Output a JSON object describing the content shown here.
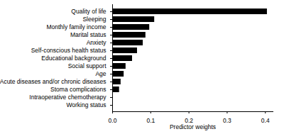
{
  "chart_data": {
    "type": "bar",
    "orientation": "horizontal",
    "categories": [
      "Quality of life",
      "Sleeping",
      "Monthly family income",
      "Marital status",
      "Anxiety",
      "Self-conscious health status",
      "Educational background",
      "Social support",
      "Age",
      "Acute diseases and/or chronic diseases",
      "Stoma complications",
      "Intraoperative chemotherapy",
      "Working status"
    ],
    "values": [
      0.405,
      0.11,
      0.097,
      0.087,
      0.08,
      0.065,
      0.052,
      0.035,
      0.03,
      0.022,
      0.018,
      0.001,
      0.0005
    ],
    "color": "#000000",
    "xlabel": "Predictor weights",
    "xlim": [
      0,
      0.42
    ],
    "xticks": [
      {
        "value": 0,
        "label": "0.0"
      },
      {
        "value": 0.1,
        "label": "0.1"
      },
      {
        "value": 0.2,
        "label": "0.2"
      },
      {
        "value": 0.3,
        "label": "0.3"
      },
      {
        "value": 0.4,
        "label": "0.4"
      }
    ],
    "grid": false
  }
}
